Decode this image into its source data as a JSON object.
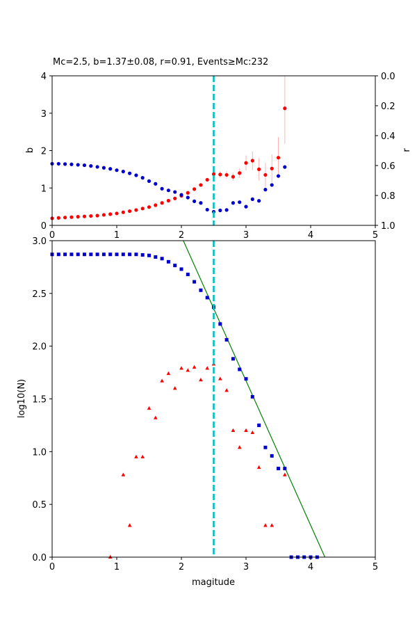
{
  "chart_data": [
    {
      "type": "scatter",
      "title": "Mc=2.5, b=1.37±0.08, r=0.91, Events≥Mc:232",
      "xlabel": "",
      "ylabel_left": "b",
      "ylabel_right": "r",
      "xlim": [
        0,
        5
      ],
      "ylim_left": [
        0,
        4
      ],
      "ylim_right": [
        0.0,
        1.0
      ],
      "right_axis_inverted": true,
      "x_ticks": [
        "0",
        "1",
        "2",
        "3",
        "4",
        "5"
      ],
      "y_ticks_left": [
        "0",
        "1",
        "2",
        "3",
        "4"
      ],
      "y_ticks_right": [
        "0.0",
        "0.2",
        "0.4",
        "0.6",
        "0.8",
        "1.0"
      ],
      "mc_line": {
        "x": 2.5,
        "color": "#00bfbf"
      },
      "series": [
        {
          "axis": "left",
          "color": "#ff0000",
          "errorbar_color": "#ffb3b3",
          "x": [
            0.0,
            0.1,
            0.2,
            0.3,
            0.4,
            0.5,
            0.6,
            0.7,
            0.8,
            0.9,
            1.0,
            1.1,
            1.2,
            1.3,
            1.4,
            1.5,
            1.6,
            1.7,
            1.8,
            1.9,
            2.0,
            2.1,
            2.2,
            2.3,
            2.4,
            2.5,
            2.6,
            2.7,
            2.8,
            2.9,
            3.0,
            3.1,
            3.2,
            3.3,
            3.4,
            3.5,
            3.6
          ],
          "values": [
            0.19,
            0.2,
            0.21,
            0.22,
            0.23,
            0.24,
            0.25,
            0.26,
            0.28,
            0.3,
            0.32,
            0.35,
            0.38,
            0.41,
            0.45,
            0.49,
            0.54,
            0.6,
            0.66,
            0.72,
            0.79,
            0.87,
            0.97,
            1.08,
            1.22,
            1.37,
            1.36,
            1.35,
            1.3,
            1.4,
            1.67,
            1.73,
            1.5,
            1.35,
            1.52,
            1.81,
            3.13
          ],
          "errors": [
            0.01,
            0.01,
            0.01,
            0.01,
            0.01,
            0.01,
            0.01,
            0.01,
            0.01,
            0.01,
            0.01,
            0.01,
            0.01,
            0.01,
            0.01,
            0.01,
            0.01,
            0.02,
            0.02,
            0.02,
            0.02,
            0.03,
            0.03,
            0.04,
            0.05,
            0.08,
            0.09,
            0.1,
            0.11,
            0.13,
            0.2,
            0.25,
            0.3,
            0.32,
            0.38,
            0.55,
            0.95
          ]
        },
        {
          "axis": "right",
          "color": "#0000cc",
          "x": [
            0.0,
            0.1,
            0.2,
            0.3,
            0.4,
            0.5,
            0.6,
            0.7,
            0.8,
            0.9,
            1.0,
            1.1,
            1.2,
            1.3,
            1.4,
            1.5,
            1.6,
            1.7,
            1.8,
            1.9,
            2.0,
            2.1,
            2.2,
            2.3,
            2.4,
            2.5,
            2.6,
            2.7,
            2.8,
            2.9,
            3.0,
            3.1,
            3.2,
            3.3,
            3.4,
            3.5,
            3.6
          ],
          "values": [
            0.588,
            0.588,
            0.59,
            0.592,
            0.595,
            0.598,
            0.603,
            0.609,
            0.615,
            0.622,
            0.631,
            0.64,
            0.652,
            0.665,
            0.682,
            0.704,
            0.722,
            0.755,
            0.766,
            0.777,
            0.796,
            0.814,
            0.839,
            0.85,
            0.895,
            0.909,
            0.9,
            0.897,
            0.85,
            0.845,
            0.875,
            0.825,
            0.836,
            0.761,
            0.73,
            0.67,
            0.61
          ]
        }
      ]
    },
    {
      "type": "scatter",
      "title": "",
      "xlabel": "magitude",
      "ylabel": "log10(N)",
      "xlim": [
        0,
        5
      ],
      "ylim": [
        0.0,
        3.0
      ],
      "x_ticks": [
        "0",
        "1",
        "2",
        "3",
        "4",
        "5"
      ],
      "y_ticks": [
        "0.0",
        "0.5",
        "1.0",
        "1.5",
        "2.0",
        "2.5",
        "3.0"
      ],
      "mc_line": {
        "x": 2.5,
        "color": "#00bfbf"
      },
      "fit_line": {
        "color": "#008000",
        "x": [
          2.03,
          4.22
        ],
        "y": [
          3.0,
          0.0
        ]
      },
      "series": [
        {
          "marker": "square",
          "color": "#0000cc",
          "x": [
            0.0,
            0.1,
            0.2,
            0.3,
            0.4,
            0.5,
            0.6,
            0.7,
            0.8,
            0.9,
            1.0,
            1.1,
            1.2,
            1.3,
            1.4,
            1.5,
            1.6,
            1.7,
            1.8,
            1.9,
            2.0,
            2.1,
            2.2,
            2.3,
            2.4,
            2.5,
            2.6,
            2.7,
            2.8,
            2.9,
            3.0,
            3.1,
            3.2,
            3.3,
            3.4,
            3.5,
            3.6,
            3.7,
            3.8,
            3.9,
            4.0,
            4.1
          ],
          "values": [
            2.87,
            2.87,
            2.87,
            2.87,
            2.87,
            2.87,
            2.87,
            2.87,
            2.87,
            2.87,
            2.87,
            2.87,
            2.87,
            2.87,
            2.865,
            2.86,
            2.845,
            2.83,
            2.8,
            2.765,
            2.73,
            2.68,
            2.61,
            2.53,
            2.46,
            2.37,
            2.21,
            2.06,
            1.88,
            1.78,
            1.69,
            1.52,
            1.25,
            1.04,
            0.96,
            0.84,
            0.84,
            0.0,
            0.0,
            0.0,
            0.0,
            0.0
          ]
        },
        {
          "marker": "triangle",
          "color": "#ff0000",
          "x": [
            0.9,
            1.1,
            1.2,
            1.3,
            1.4,
            1.5,
            1.6,
            1.7,
            1.8,
            1.9,
            2.0,
            2.1,
            2.2,
            2.3,
            2.4,
            2.5,
            2.6,
            2.7,
            2.8,
            2.9,
            3.0,
            3.1,
            3.2,
            3.3,
            3.4,
            3.6
          ],
          "values": [
            0.0,
            0.78,
            0.3,
            0.95,
            0.95,
            1.41,
            1.32,
            1.67,
            1.74,
            1.6,
            1.79,
            1.77,
            1.8,
            1.68,
            1.79,
            1.83,
            1.69,
            1.58,
            1.2,
            1.04,
            1.2,
            1.18,
            0.85,
            0.3,
            0.3,
            0.78
          ]
        }
      ]
    }
  ]
}
